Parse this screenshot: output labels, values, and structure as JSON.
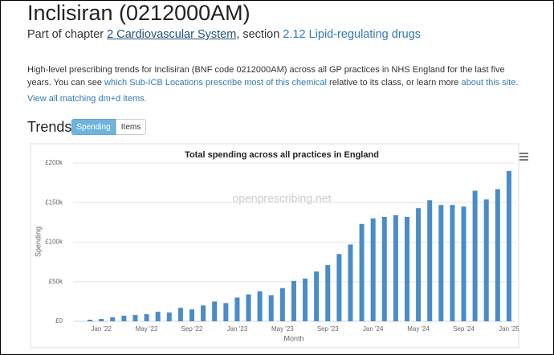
{
  "header": {
    "title": "Inclisiran (0212000AM)",
    "chapter": [
      "Part of chapter ",
      "2 Cardiovascular System",
      ", section ",
      "2.12 Lipid-regulating drugs"
    ]
  },
  "intro": [
    "High-level prescribing trends for Inclisiran (BNF code 0212000AM) across all GP practices in NHS England for the last five years. You can see ",
    "which Sub-ICB Locations prescribe most of this chemical",
    " relative to its class, or learn more ",
    "about this site",
    "."
  ],
  "dmd_link": "View all matching dm+d items.",
  "trends": {
    "heading": "Trends",
    "tabs": [
      "Spending",
      "Items"
    ],
    "active_tab": 0
  },
  "chart_data": {
    "type": "bar",
    "title": "Total spending across all practices in England",
    "watermark": "openprescribing.net",
    "x_label": "Month",
    "y_label": "Spending",
    "color": "#4a8cc7",
    "categories": [
      null,
      "Jan '22",
      null,
      null,
      null,
      "May '22",
      null,
      null,
      null,
      "Sep '22",
      null,
      null,
      null,
      "Jan '23",
      null,
      null,
      null,
      "May '23",
      null,
      null,
      null,
      "Sep '23",
      null,
      null,
      null,
      "Jan '24",
      null,
      null,
      null,
      "May '24",
      null,
      null,
      null,
      "Sep '24",
      null,
      null,
      null,
      "Jan '25"
    ],
    "values": [
      2000,
      3000,
      5000,
      7000,
      8000,
      9000,
      12000,
      11000,
      17000,
      15000,
      20000,
      25000,
      23000,
      30000,
      34000,
      38000,
      33000,
      42000,
      51000,
      54000,
      63000,
      71000,
      85000,
      97000,
      123000,
      130000,
      132000,
      134000,
      132000,
      143000,
      153000,
      147000,
      147000,
      145000,
      165000,
      154000,
      167000,
      190000
    ],
    "ylim": [
      0,
      200000
    ],
    "yticks": [
      {
        "value": 0,
        "label": "£0"
      },
      {
        "value": 50000,
        "label": "£50k"
      },
      {
        "value": 100000,
        "label": "£100k"
      },
      {
        "value": 150000,
        "label": "£150k"
      },
      {
        "value": 200000,
        "label": "£200k"
      }
    ],
    "grid": true
  }
}
